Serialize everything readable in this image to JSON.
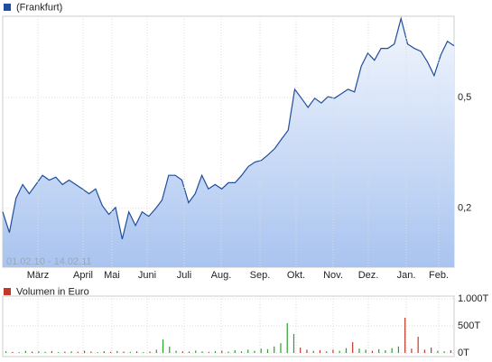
{
  "chart_data": [
    {
      "type": "line",
      "legend": "(Frankfurt)",
      "color": "#1f4e9c",
      "date_range": "01.02.10 - 14.02.11",
      "month_labels": [
        "März",
        "April",
        "Mai",
        "Juni",
        "Juli",
        "Aug.",
        "Sep.",
        "Okt.",
        "Nov.",
        "Dez.",
        "Jan.",
        "Feb."
      ],
      "values": [
        0.19,
        0.134,
        0.227,
        0.264,
        0.239,
        0.264,
        0.289,
        0.276,
        0.284,
        0.264,
        0.276,
        0.264,
        0.252,
        0.239,
        0.252,
        0.207,
        0.183,
        0.202,
        0.116,
        0.19,
        0.153,
        0.19,
        0.178,
        0.198,
        0.222,
        0.289,
        0.289,
        0.276,
        0.215,
        0.239,
        0.289,
        0.252,
        0.264,
        0.252,
        0.269,
        0.269,
        0.289,
        0.313,
        0.325,
        0.33,
        0.345,
        0.362,
        0.387,
        0.411,
        0.522,
        0.498,
        0.473,
        0.498,
        0.485,
        0.502,
        0.498,
        0.51,
        0.522,
        0.515,
        0.584,
        0.62,
        0.601,
        0.633,
        0.633,
        0.645,
        0.714,
        0.645,
        0.633,
        0.625,
        0.596,
        0.559,
        0.615,
        0.652,
        0.64
      ],
      "ylim": [
        0.04,
        0.72
      ],
      "yticks": [
        {
          "value": 0.2,
          "label": "0,2"
        },
        {
          "value": 0.5,
          "label": "0,5"
        }
      ],
      "grid": true
    },
    {
      "type": "bar",
      "legend": "Volumen in Euro",
      "color": "#c0392b",
      "up_color": "#2e9e2e",
      "values": [
        30,
        20,
        15,
        40,
        25,
        30,
        20,
        35,
        15,
        25,
        30,
        20,
        40,
        25,
        15,
        30,
        20,
        35,
        25,
        20,
        30,
        15,
        25,
        60,
        250,
        120,
        40,
        30,
        25,
        45,
        30,
        20,
        35,
        40,
        25,
        50,
        30,
        60,
        40,
        80,
        70,
        120,
        180,
        550,
        350,
        100,
        60,
        40,
        50,
        30,
        60,
        40,
        90,
        200,
        80,
        60,
        40,
        70,
        50,
        90,
        120,
        650,
        80,
        300,
        60,
        100,
        40,
        30,
        50
      ],
      "ylim": [
        0,
        1000
      ],
      "yticks": [
        {
          "value": 0,
          "label": "0T"
        },
        {
          "value": 500,
          "label": "500T"
        },
        {
          "value": 1000,
          "label": "1.000T"
        }
      ],
      "grid": true
    }
  ]
}
